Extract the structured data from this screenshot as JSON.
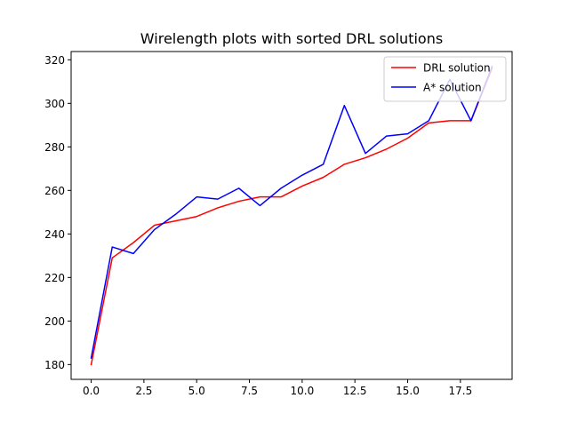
{
  "chart_data": {
    "type": "line",
    "title": "Wirelength plots with sorted DRL solutions",
    "xlabel": "",
    "ylabel": "",
    "xlim": [
      -0.95,
      19.95
    ],
    "ylim": [
      173.2,
      323.8
    ],
    "xticks": [
      0,
      2.5,
      5,
      7.5,
      10,
      12.5,
      15,
      17.5
    ],
    "xtick_labels": [
      "0.0",
      "2.5",
      "5.0",
      "7.5",
      "10.0",
      "12.5",
      "15.0",
      "17.5"
    ],
    "yticks": [
      180,
      200,
      220,
      240,
      260,
      280,
      300,
      320
    ],
    "ytick_labels": [
      "180",
      "200",
      "220",
      "240",
      "260",
      "280",
      "300",
      "320"
    ],
    "grid": false,
    "legend_position": "top-right",
    "x": [
      0,
      1,
      2,
      3,
      4,
      5,
      6,
      7,
      8,
      9,
      10,
      11,
      12,
      13,
      14,
      15,
      16,
      17,
      18,
      19
    ],
    "series": [
      {
        "name": "DRL solution",
        "color": "#ff0000",
        "values": [
          180,
          229,
          236,
          244,
          246,
          248,
          252,
          255,
          257,
          257,
          262,
          266,
          272,
          275,
          279,
          284,
          291,
          292,
          292,
          316
        ]
      },
      {
        "name": "A* solution",
        "color": "#0000ff",
        "values": [
          183,
          234,
          231,
          242,
          249,
          257,
          256,
          261,
          253,
          261,
          267,
          272,
          299,
          277,
          285,
          286,
          292,
          311,
          292,
          317
        ]
      }
    ]
  }
}
